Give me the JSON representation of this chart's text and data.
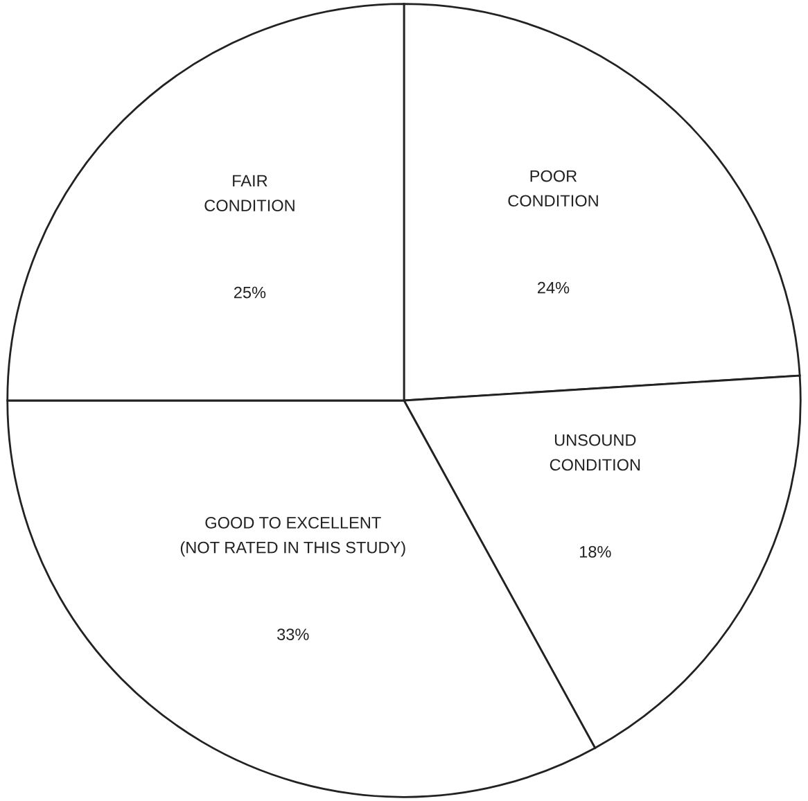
{
  "chart_data": {
    "type": "pie",
    "categories": [
      "POOR\nCONDITION",
      "UNSOUND\nCONDITION",
      "GOOD TO EXCELLENT\n(NOT RATED IN THIS STUDY)",
      "FAIR\nCONDITION"
    ],
    "values": [
      24,
      18,
      33,
      25
    ],
    "colors": [
      "#ffffff",
      "#ffffff",
      "#ffffff",
      "#ffffff"
    ],
    "value_labels": [
      "24%",
      "18%",
      "33%",
      "25%"
    ]
  }
}
